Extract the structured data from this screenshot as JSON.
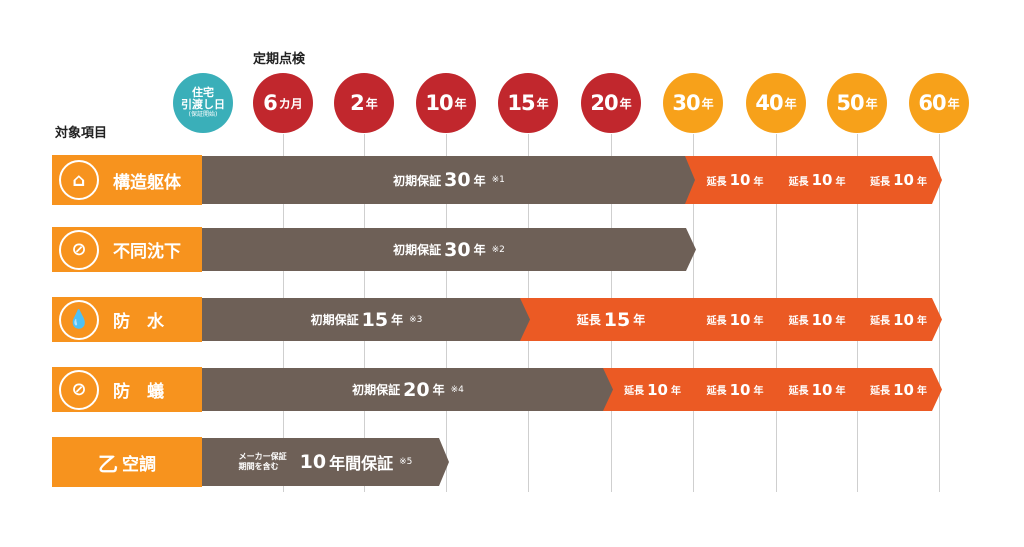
{
  "header": {
    "inspection_title": "定期点検",
    "items_title": "対象項目"
  },
  "timeline": [
    {
      "type": "handover",
      "line1": "住宅",
      "line2": "引渡し日",
      "line3": "(保証開始)",
      "color": "#3aafb9"
    },
    {
      "num": "6",
      "unit": "カ月",
      "color": "#c1272d"
    },
    {
      "num": "2",
      "unit": "年",
      "color": "#c1272d"
    },
    {
      "num": "10",
      "unit": "年",
      "color": "#c1272d"
    },
    {
      "num": "15",
      "unit": "年",
      "color": "#c1272d"
    },
    {
      "num": "20",
      "unit": "年",
      "color": "#c1272d"
    },
    {
      "num": "30",
      "unit": "年",
      "color": "#f7a11a"
    },
    {
      "num": "40",
      "unit": "年",
      "color": "#f7a11a"
    },
    {
      "num": "50",
      "unit": "年",
      "color": "#f7a11a"
    },
    {
      "num": "60",
      "unit": "年",
      "color": "#f7a11a"
    }
  ],
  "colors": {
    "label": "#f7931e",
    "initial": "#6e6057",
    "extension": "#eb5a24"
  },
  "rows": [
    {
      "label": "構造躯体",
      "icon": "house-frame-icon",
      "segments": [
        {
          "kind": "initial",
          "from": 0,
          "to": 6,
          "pre": "初期保証",
          "big": "30",
          "unit": "年",
          "note": "※1"
        },
        {
          "kind": "extension",
          "from": 6,
          "to": 7,
          "pre": "延長",
          "big": "10",
          "unit": "年"
        },
        {
          "kind": "extension",
          "from": 7,
          "to": 8,
          "pre": "延長",
          "big": "10",
          "unit": "年"
        },
        {
          "kind": "extension",
          "from": 8,
          "to": 9,
          "pre": "延長",
          "big": "10",
          "unit": "年"
        }
      ]
    },
    {
      "label": "不同沈下",
      "icon": "no-subsidence-icon",
      "segments": [
        {
          "kind": "initial",
          "from": 0,
          "to": 6,
          "pre": "初期保証",
          "big": "30",
          "unit": "年",
          "note": "※2"
        }
      ]
    },
    {
      "label": "防　水",
      "icon": "water-drop-icon",
      "segments": [
        {
          "kind": "initial",
          "from": 0,
          "to": 4,
          "pre": "初期保証",
          "big": "15",
          "unit": "年",
          "note": "※3"
        },
        {
          "kind": "extension",
          "from": 4,
          "to": 6,
          "pre": "延長",
          "big": "15",
          "unit": "年"
        },
        {
          "kind": "extension",
          "from": 6,
          "to": 7,
          "pre": "延長",
          "big": "10",
          "unit": "年"
        },
        {
          "kind": "extension",
          "from": 7,
          "to": 8,
          "pre": "延長",
          "big": "10",
          "unit": "年"
        },
        {
          "kind": "extension",
          "from": 8,
          "to": 9,
          "pre": "延長",
          "big": "10",
          "unit": "年"
        }
      ]
    },
    {
      "label": "防　蟻",
      "icon": "no-termite-icon",
      "segments": [
        {
          "kind": "initial",
          "from": 0,
          "to": 5,
          "pre": "初期保証",
          "big": "20",
          "unit": "年",
          "note": "※4"
        },
        {
          "kind": "extension",
          "from": 5,
          "to": 6,
          "pre": "延長",
          "big": "10",
          "unit": "年"
        },
        {
          "kind": "extension",
          "from": 6,
          "to": 7,
          "pre": "延長",
          "big": "10",
          "unit": "年"
        },
        {
          "kind": "extension",
          "from": 7,
          "to": 8,
          "pre": "延長",
          "big": "10",
          "unit": "年"
        },
        {
          "kind": "extension",
          "from": 8,
          "to": 9,
          "pre": "延長",
          "big": "10",
          "unit": "年"
        }
      ]
    },
    {
      "label": "空調",
      "icon": "air-conditioner-icon",
      "icon_glyph": "乙",
      "segments": [
        {
          "kind": "initial",
          "from": 0,
          "to": 3,
          "small1": "メーカー保証",
          "small2": "期間を含む",
          "big": "10",
          "unit": "年間保証",
          "note": "※5"
        }
      ]
    }
  ]
}
